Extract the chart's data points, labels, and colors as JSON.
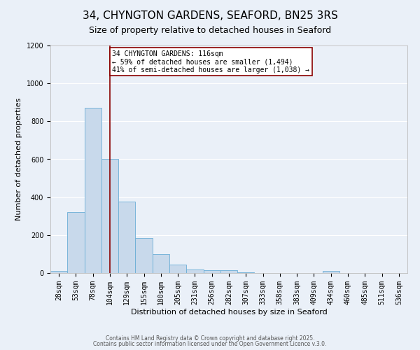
{
  "title": "34, CHYNGTON GARDENS, SEAFORD, BN25 3RS",
  "subtitle": "Size of property relative to detached houses in Seaford",
  "xlabel": "Distribution of detached houses by size in Seaford",
  "ylabel": "Number of detached properties",
  "categories": [
    "28sqm",
    "53sqm",
    "78sqm",
    "104sqm",
    "129sqm",
    "155sqm",
    "180sqm",
    "205sqm",
    "231sqm",
    "256sqm",
    "282sqm",
    "307sqm",
    "333sqm",
    "358sqm",
    "383sqm",
    "409sqm",
    "434sqm",
    "460sqm",
    "485sqm",
    "511sqm",
    "536sqm"
  ],
  "values": [
    10,
    320,
    870,
    600,
    375,
    185,
    100,
    45,
    20,
    15,
    15,
    5,
    0,
    0,
    0,
    0,
    10,
    0,
    0,
    0,
    0
  ],
  "bar_color": "#c8d9eb",
  "bar_edge_color": "#6baed6",
  "background_color": "#eaf0f8",
  "grid_color": "#ffffff",
  "vline_color": "#8b0000",
  "annotation_text": "34 CHYNGTON GARDENS: 116sqm\n← 59% of detached houses are smaller (1,494)\n41% of semi-detached houses are larger (1,038) →",
  "annotation_box_color": "#8b0000",
  "ylim": [
    0,
    1200
  ],
  "yticks": [
    0,
    200,
    400,
    600,
    800,
    1000,
    1200
  ],
  "title_fontsize": 11,
  "subtitle_fontsize": 9,
  "axis_label_fontsize": 8,
  "tick_fontsize": 7,
  "annotation_fontsize": 7,
  "footer_line1": "Contains HM Land Registry data © Crown copyright and database right 2025.",
  "footer_line2": "Contains public sector information licensed under the Open Government Licence v.3.0.",
  "footer_fontsize": 5.5
}
